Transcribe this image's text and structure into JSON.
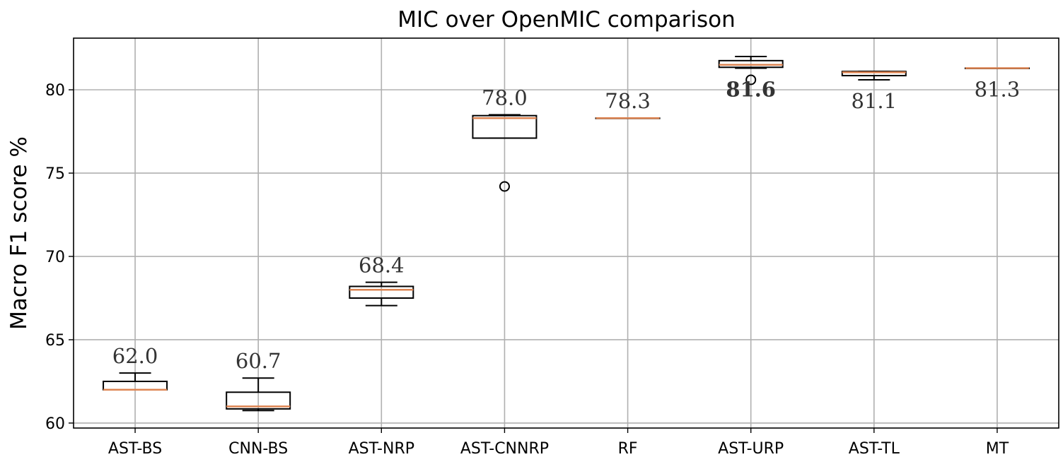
{
  "chart_data": {
    "type": "box",
    "title": "MIC over OpenMIC comparison",
    "xlabel": "",
    "ylabel": "Macro F1 score %",
    "ylim": [
      59.7,
      83.1
    ],
    "yticks": [
      60,
      65,
      70,
      75,
      80
    ],
    "grid": true,
    "categories": [
      "AST-BS",
      "CNN-BS",
      "AST-NRP",
      "AST-CNNRP",
      "RF",
      "AST-URP",
      "AST-TL",
      "MT"
    ],
    "boxes": [
      {
        "category": "AST-BS",
        "whisker_low": 62.0,
        "q1": 62.0,
        "median": 62.0,
        "q3": 62.5,
        "whisker_high": 63.0,
        "outliers": [],
        "label": "62.0",
        "label_bold": false,
        "label_pos": "above"
      },
      {
        "category": "CNN-BS",
        "whisker_low": 60.75,
        "q1": 60.85,
        "median": 61.0,
        "q3": 61.85,
        "whisker_high": 62.7,
        "outliers": [],
        "label": "60.7",
        "label_bold": false,
        "label_pos": "above"
      },
      {
        "category": "AST-NRP",
        "whisker_low": 67.05,
        "q1": 67.5,
        "median": 68.0,
        "q3": 68.2,
        "whisker_high": 68.45,
        "outliers": [],
        "label": "68.4",
        "label_bold": false,
        "label_pos": "above"
      },
      {
        "category": "AST-CNNRP",
        "whisker_low": 77.1,
        "q1": 77.1,
        "median": 78.3,
        "q3": 78.45,
        "whisker_high": 78.5,
        "outliers": [
          74.2
        ],
        "label": "78.0",
        "label_bold": false,
        "label_pos": "above"
      },
      {
        "category": "RF",
        "whisker_low": 78.3,
        "q1": 78.3,
        "median": 78.3,
        "q3": 78.3,
        "whisker_high": 78.3,
        "outliers": [],
        "label": "78.3",
        "label_bold": false,
        "label_pos": "above"
      },
      {
        "category": "AST-URP",
        "whisker_low": 81.3,
        "q1": 81.35,
        "median": 81.5,
        "q3": 81.75,
        "whisker_high": 82.0,
        "outliers": [
          80.6
        ],
        "label": "81.6",
        "label_bold": true,
        "label_pos": "below"
      },
      {
        "category": "AST-TL",
        "whisker_low": 80.6,
        "q1": 80.85,
        "median": 81.05,
        "q3": 81.1,
        "whisker_high": 81.1,
        "outliers": [],
        "label": "81.1",
        "label_bold": false,
        "label_pos": "below"
      },
      {
        "category": "MT",
        "whisker_low": 81.3,
        "q1": 81.3,
        "median": 81.3,
        "q3": 81.3,
        "whisker_high": 81.3,
        "outliers": [],
        "label": "81.3",
        "label_bold": false,
        "label_pos": "below"
      }
    ],
    "colors": {
      "median": "#dd8452",
      "box": "#000000",
      "grid": "#b0b0b0"
    }
  }
}
